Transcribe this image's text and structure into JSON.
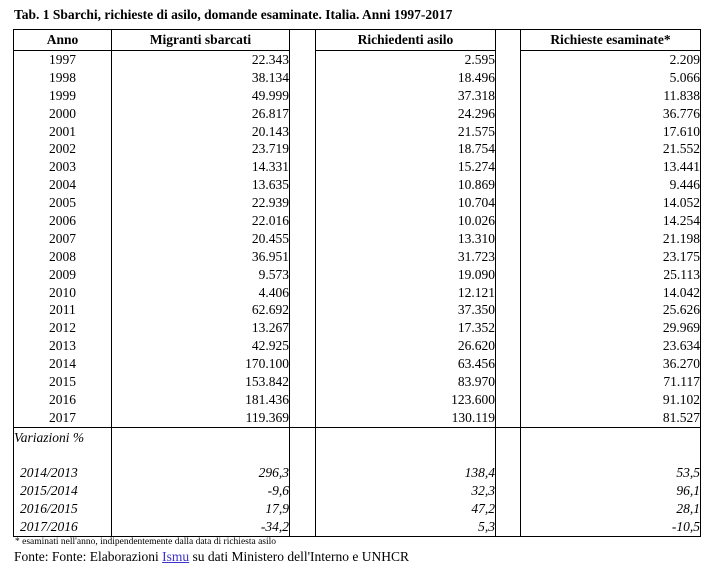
{
  "title": "Tab. 1 Sbarchi, richieste di asilo, domande esaminate. Italia. Anni 1997-2017",
  "table": {
    "headers": [
      "Anno",
      "Migranti sbarcati",
      "Richiedenti asilo",
      "Richieste esaminate*"
    ],
    "rows": [
      {
        "anno": "1997",
        "sbarcati": "22.343",
        "asilo": "2.595",
        "esaminate": "2.209"
      },
      {
        "anno": "1998",
        "sbarcati": "38.134",
        "asilo": "18.496",
        "esaminate": "5.066"
      },
      {
        "anno": "1999",
        "sbarcati": "49.999",
        "asilo": "37.318",
        "esaminate": "11.838"
      },
      {
        "anno": "2000",
        "sbarcati": "26.817",
        "asilo": "24.296",
        "esaminate": "36.776"
      },
      {
        "anno": "2001",
        "sbarcati": "20.143",
        "asilo": "21.575",
        "esaminate": "17.610"
      },
      {
        "anno": "2002",
        "sbarcati": "23.719",
        "asilo": "18.754",
        "esaminate": "21.552"
      },
      {
        "anno": "2003",
        "sbarcati": "14.331",
        "asilo": "15.274",
        "esaminate": "13.441"
      },
      {
        "anno": "2004",
        "sbarcati": "13.635",
        "asilo": "10.869",
        "esaminate": "9.446"
      },
      {
        "anno": "2005",
        "sbarcati": "22.939",
        "asilo": "10.704",
        "esaminate": "14.052"
      },
      {
        "anno": "2006",
        "sbarcati": "22.016",
        "asilo": "10.026",
        "esaminate": "14.254"
      },
      {
        "anno": "2007",
        "sbarcati": "20.455",
        "asilo": "13.310",
        "esaminate": "21.198"
      },
      {
        "anno": "2008",
        "sbarcati": "36.951",
        "asilo": "31.723",
        "esaminate": "23.175"
      },
      {
        "anno": "2009",
        "sbarcati": "9.573",
        "asilo": "19.090",
        "esaminate": "25.113"
      },
      {
        "anno": "2010",
        "sbarcati": "4.406",
        "asilo": "12.121",
        "esaminate": "14.042"
      },
      {
        "anno": "2011",
        "sbarcati": "62.692",
        "asilo": "37.350",
        "esaminate": "25.626"
      },
      {
        "anno": "2012",
        "sbarcati": "13.267",
        "asilo": "17.352",
        "esaminate": "29.969"
      },
      {
        "anno": "2013",
        "sbarcati": "42.925",
        "asilo": "26.620",
        "esaminate": "23.634"
      },
      {
        "anno": "2014",
        "sbarcati": "170.100",
        "asilo": "63.456",
        "esaminate": "36.270"
      },
      {
        "anno": "2015",
        "sbarcati": "153.842",
        "asilo": "83.970",
        "esaminate": "71.117"
      },
      {
        "anno": "2016",
        "sbarcati": "181.436",
        "asilo": "123.600",
        "esaminate": "91.102"
      },
      {
        "anno": "2017",
        "sbarcati": "119.369",
        "asilo": "130.119",
        "esaminate": "81.527"
      }
    ],
    "variations": {
      "label": "Variazioni %",
      "rows": [
        {
          "anno": "2014/2013",
          "sbarcati": "296,3",
          "asilo": "138,4",
          "esaminate": "53,5"
        },
        {
          "anno": "2015/2014",
          "sbarcati": "-9,6",
          "asilo": "32,3",
          "esaminate": "96,1"
        },
        {
          "anno": "2016/2015",
          "sbarcati": "17,9",
          "asilo": "47,2",
          "esaminate": "28,1"
        },
        {
          "anno": "2017/2016",
          "sbarcati": "-34,2",
          "asilo": "5,3",
          "esaminate": "-10,5"
        }
      ]
    }
  },
  "footnote": "* esaminati nell'anno, indipendentemente dalla data di richiesta asilo",
  "source": {
    "prefix": "Fonte: Fonte: Elaborazioni ",
    "link": "Ismu",
    "suffix": " su dati Ministero dell'Interno e UNHCR",
    "link_color": "#3d33cc"
  },
  "colors": {
    "border": "#000000",
    "text": "#000000",
    "background": "#ffffff"
  }
}
